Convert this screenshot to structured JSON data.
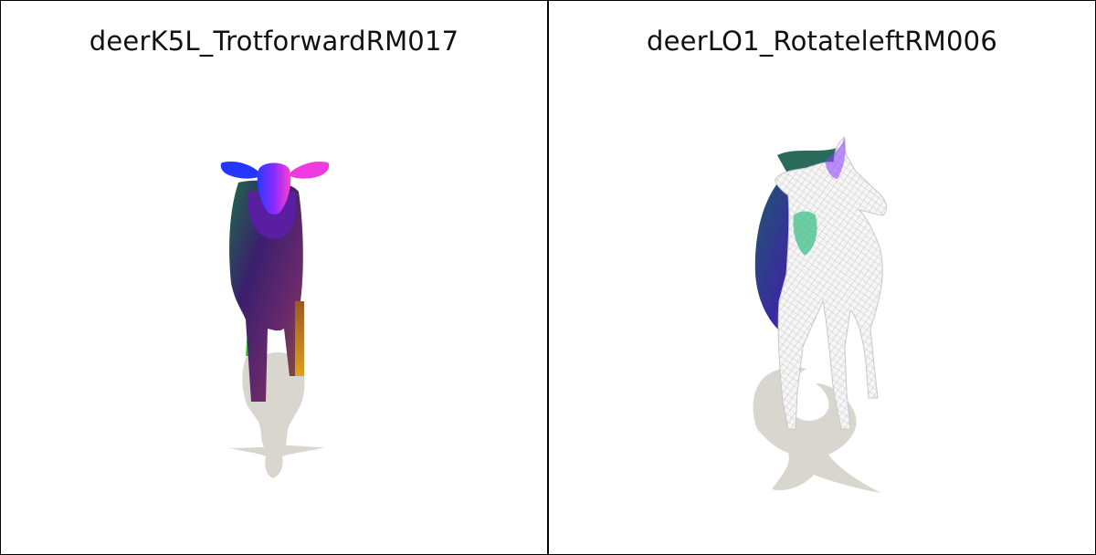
{
  "panels": [
    {
      "title": "deerK5L_TrotforwardRM017"
    },
    {
      "title": "deerLO1_RotateleftRM006"
    }
  ],
  "colors": {
    "background": "#ffffff",
    "border": "#000000",
    "shadow": "#d9d6cf",
    "wireframe": "#e8e8e8"
  }
}
